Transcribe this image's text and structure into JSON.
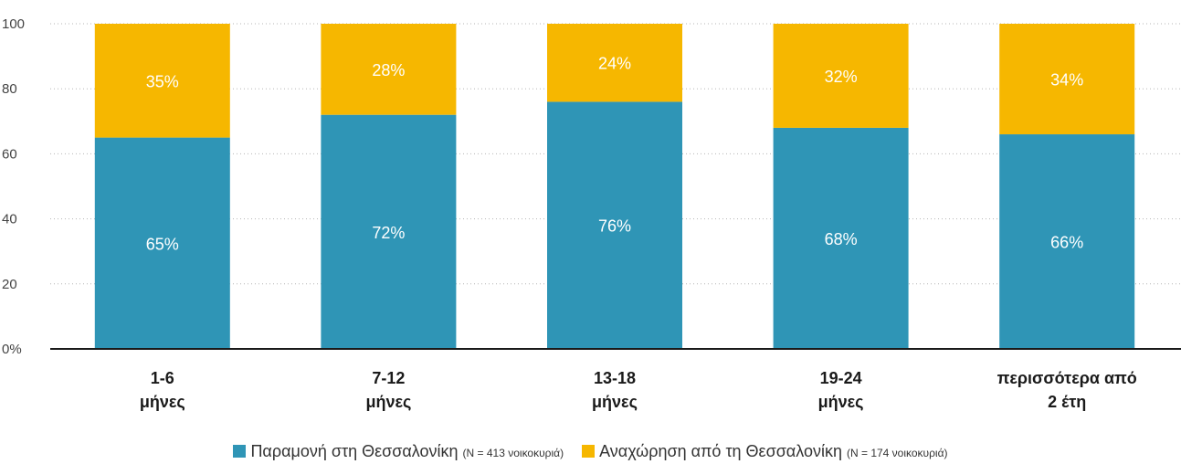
{
  "chart_data": {
    "type": "bar",
    "stacked": true,
    "categories": [
      [
        "1-6",
        "μήνες"
      ],
      [
        "7-12",
        "μήνες"
      ],
      [
        "13-18",
        "μήνες"
      ],
      [
        "19-24",
        "μήνες"
      ],
      [
        "περισσότερα από",
        "2 έτη"
      ]
    ],
    "series": [
      {
        "name": "Παραμονή στη Θεσσαλονίκη",
        "note": "(N = 413 νοικοκυριά)",
        "color": "#2f95b6",
        "values": [
          65,
          72,
          76,
          68,
          66
        ],
        "labels": [
          "65%",
          "72%",
          "76%",
          "68%",
          "66%"
        ]
      },
      {
        "name": "Αναχώρηση από τη Θεσσαλονίκη",
        "note": "(N = 174 νοικοκυριά)",
        "color": "#f6b700",
        "values": [
          35,
          28,
          24,
          32,
          34
        ],
        "labels": [
          "35%",
          "28%",
          "24%",
          "32%",
          "34%"
        ]
      }
    ],
    "ylim": [
      0,
      100
    ],
    "yticks": [
      0,
      20,
      40,
      60,
      80,
      100
    ],
    "ytick_labels": [
      "0%",
      "20",
      "40",
      "60",
      "80",
      "100"
    ],
    "grid": true,
    "legend_position": "bottom-center"
  }
}
